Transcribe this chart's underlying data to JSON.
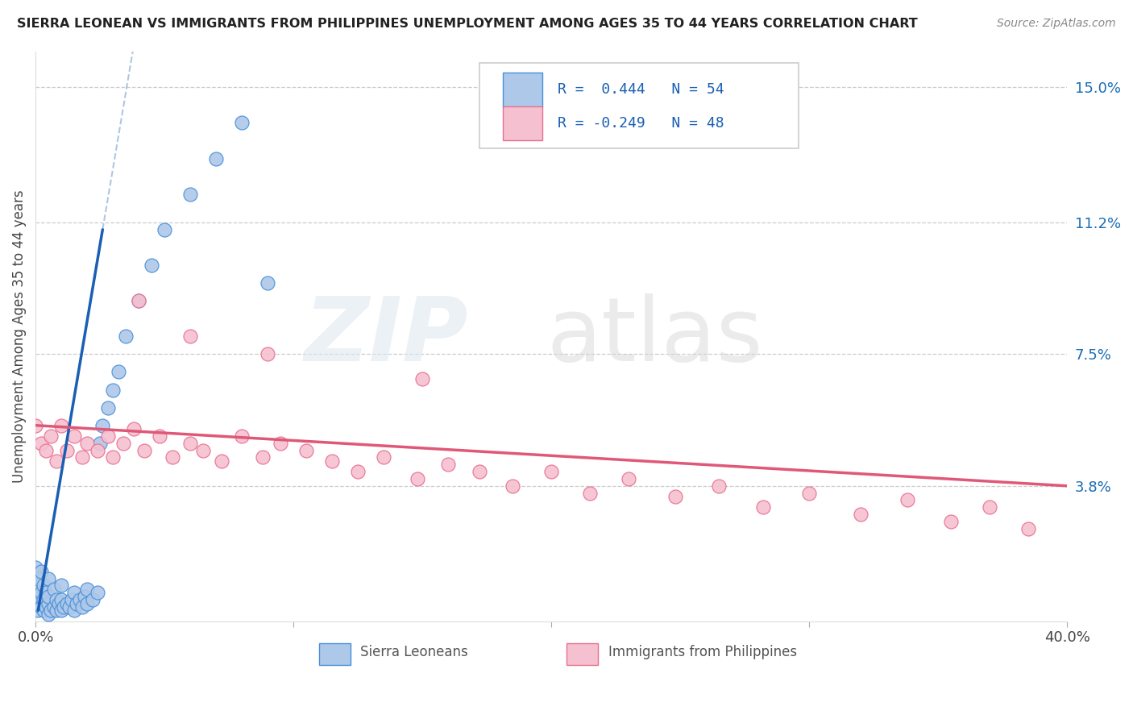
{
  "title": "SIERRA LEONEAN VS IMMIGRANTS FROM PHILIPPINES UNEMPLOYMENT AMONG AGES 35 TO 44 YEARS CORRELATION CHART",
  "source": "Source: ZipAtlas.com",
  "ylabel": "Unemployment Among Ages 35 to 44 years",
  "xlim": [
    0.0,
    0.4
  ],
  "ylim": [
    0.0,
    0.16
  ],
  "right_yticks": [
    0.038,
    0.075,
    0.112,
    0.15
  ],
  "right_yticklabels": [
    "3.8%",
    "7.5%",
    "11.2%",
    "15.0%"
  ],
  "sierra_R": 0.444,
  "sierra_N": 54,
  "phil_R": -0.249,
  "phil_N": 48,
  "sierra_color": "#adc8e8",
  "sierra_edge_color": "#4a90d9",
  "sierra_line_color": "#1a5fb4",
  "phil_color": "#f5c0d0",
  "phil_edge_color": "#e87090",
  "phil_line_color": "#e05878",
  "background_color": "#ffffff",
  "sierra_x": [
    0.0,
    0.0,
    0.0,
    0.001,
    0.001,
    0.001,
    0.002,
    0.002,
    0.002,
    0.003,
    0.003,
    0.003,
    0.004,
    0.004,
    0.005,
    0.005,
    0.005,
    0.005,
    0.006,
    0.007,
    0.007,
    0.008,
    0.008,
    0.009,
    0.01,
    0.01,
    0.01,
    0.011,
    0.012,
    0.013,
    0.014,
    0.015,
    0.015,
    0.016,
    0.017,
    0.018,
    0.019,
    0.02,
    0.02,
    0.022,
    0.024,
    0.025,
    0.026,
    0.028,
    0.03,
    0.032,
    0.035,
    0.04,
    0.045,
    0.05,
    0.06,
    0.07,
    0.08,
    0.09
  ],
  "sierra_y": [
    0.005,
    0.01,
    0.015,
    0.003,
    0.007,
    0.012,
    0.004,
    0.008,
    0.014,
    0.003,
    0.006,
    0.01,
    0.004,
    0.008,
    0.002,
    0.005,
    0.007,
    0.012,
    0.003,
    0.004,
    0.009,
    0.003,
    0.006,
    0.005,
    0.003,
    0.006,
    0.01,
    0.004,
    0.005,
    0.004,
    0.006,
    0.003,
    0.008,
    0.005,
    0.006,
    0.004,
    0.007,
    0.005,
    0.009,
    0.006,
    0.008,
    0.05,
    0.055,
    0.06,
    0.065,
    0.07,
    0.08,
    0.09,
    0.1,
    0.11,
    0.12,
    0.13,
    0.14,
    0.095
  ],
  "phil_x": [
    0.0,
    0.002,
    0.004,
    0.006,
    0.008,
    0.01,
    0.012,
    0.015,
    0.018,
    0.02,
    0.024,
    0.028,
    0.03,
    0.034,
    0.038,
    0.042,
    0.048,
    0.053,
    0.06,
    0.065,
    0.072,
    0.08,
    0.088,
    0.095,
    0.105,
    0.115,
    0.125,
    0.135,
    0.148,
    0.16,
    0.172,
    0.185,
    0.2,
    0.215,
    0.23,
    0.248,
    0.265,
    0.282,
    0.3,
    0.32,
    0.338,
    0.355,
    0.37,
    0.385,
    0.04,
    0.06,
    0.09,
    0.15
  ],
  "phil_y": [
    0.055,
    0.05,
    0.048,
    0.052,
    0.045,
    0.055,
    0.048,
    0.052,
    0.046,
    0.05,
    0.048,
    0.052,
    0.046,
    0.05,
    0.054,
    0.048,
    0.052,
    0.046,
    0.05,
    0.048,
    0.045,
    0.052,
    0.046,
    0.05,
    0.048,
    0.045,
    0.042,
    0.046,
    0.04,
    0.044,
    0.042,
    0.038,
    0.042,
    0.036,
    0.04,
    0.035,
    0.038,
    0.032,
    0.036,
    0.03,
    0.034,
    0.028,
    0.032,
    0.026,
    0.09,
    0.08,
    0.075,
    0.068
  ]
}
